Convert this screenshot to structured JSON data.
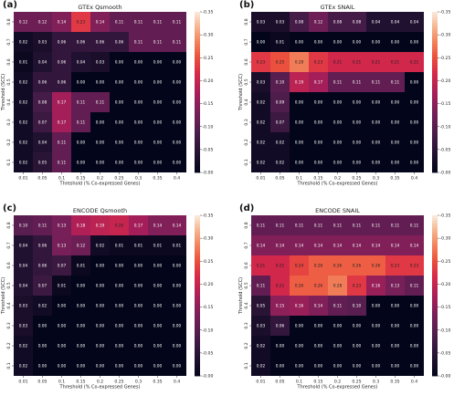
{
  "colorbar": {
    "min": 0,
    "max": 0.35,
    "ticks": [
      "0.00",
      "0.05",
      "0.10",
      "0.15",
      "0.20",
      "0.25",
      "0.30",
      "0.35"
    ]
  },
  "chart_data": [
    {
      "type": "heatmap",
      "panel": "(a)",
      "title": "GTEx Qsmooth",
      "xlabel": "Threshold (% Co-expressed Genes)",
      "ylabel": "Threshold (SCC)",
      "x_categories": [
        "0.01",
        "0.05",
        "0.1",
        "0.15",
        "0.2",
        "0.25",
        "0.3",
        "0.35",
        "0.4"
      ],
      "y_categories": [
        "0.8",
        "0.7",
        "0.6",
        "0.5",
        "0.4",
        "0.3",
        "0.2",
        "0.1"
      ],
      "values": [
        [
          0.12,
          0.12,
          0.14,
          0.23,
          0.14,
          0.11,
          0.11,
          0.11,
          0.11
        ],
        [
          0.02,
          0.03,
          0.06,
          0.06,
          0.06,
          0.06,
          0.11,
          0.11,
          0.11
        ],
        [
          0.01,
          0.04,
          0.06,
          0.04,
          0.03,
          0.0,
          0.0,
          0.0,
          0.0
        ],
        [
          0.02,
          0.06,
          0.06,
          0.0,
          0.0,
          0.0,
          0.0,
          0.0,
          0.0
        ],
        [
          0.02,
          0.08,
          0.17,
          0.11,
          0.11,
          0.0,
          0.0,
          0.0,
          0.0
        ],
        [
          0.02,
          0.07,
          0.17,
          0.11,
          0.0,
          0.0,
          0.0,
          0.0,
          0.0
        ],
        [
          0.02,
          0.04,
          0.11,
          0.0,
          0.0,
          0.0,
          0.0,
          0.0,
          0.0
        ],
        [
          0.02,
          0.05,
          0.11,
          0.0,
          0.0,
          0.0,
          0.0,
          0.0,
          0.0
        ]
      ]
    },
    {
      "type": "heatmap",
      "panel": "(b)",
      "title": "GTEx SNAIL",
      "xlabel": "Threshold (% Co-expressed Genes)",
      "ylabel": "Threshold (SCC)",
      "x_categories": [
        "0.01",
        "0.05",
        "0.1",
        "0.15",
        "0.2",
        "0.25",
        "0.3",
        "0.35",
        "0.4"
      ],
      "y_categories": [
        "0.8",
        "0.7",
        "0.6",
        "0.5",
        "0.4",
        "0.3",
        "0.2",
        "0.1"
      ],
      "values": [
        [
          0.03,
          0.03,
          0.08,
          0.12,
          0.08,
          0.08,
          0.04,
          0.04,
          0.04
        ],
        [
          0.0,
          0.01,
          0.0,
          0.0,
          0.0,
          0.0,
          0.0,
          0.0,
          0.0
        ],
        [
          0.23,
          0.25,
          0.28,
          0.23,
          0.21,
          0.21,
          0.21,
          0.21,
          0.21
        ],
        [
          0.03,
          0.1,
          0.19,
          0.17,
          0.11,
          0.11,
          0.11,
          0.11,
          0.0
        ],
        [
          0.02,
          0.09,
          0.0,
          0.0,
          0.0,
          0.0,
          0.0,
          0.0,
          0.0
        ],
        [
          0.02,
          0.07,
          0.0,
          0.0,
          0.0,
          0.0,
          0.0,
          0.0,
          0.0
        ],
        [
          0.02,
          0.02,
          0.0,
          0.0,
          0.0,
          0.0,
          0.0,
          0.0,
          0.0
        ],
        [
          0.02,
          0.02,
          0.0,
          0.0,
          0.0,
          0.0,
          0.0,
          0.0,
          0.0
        ]
      ]
    },
    {
      "type": "heatmap",
      "panel": "(c)",
      "title": "ENCODE Qsmooth",
      "xlabel": "Threshold (% Co-expressed Genes)",
      "ylabel": "Threshold (SCC)",
      "x_categories": [
        "0.01",
        "0.05",
        "0.1",
        "0.15",
        "0.2",
        "0.25",
        "0.3",
        "0.35",
        "0.4"
      ],
      "y_categories": [
        "0.8",
        "0.7",
        "0.6",
        "0.5",
        "0.4",
        "0.3",
        "0.2",
        "0.1"
      ],
      "values": [
        [
          0.1,
          0.11,
          0.13,
          0.18,
          0.19,
          0.2,
          0.17,
          0.14,
          0.14
        ],
        [
          0.04,
          0.06,
          0.13,
          0.12,
          0.02,
          0.01,
          0.01,
          0.01,
          0.01
        ],
        [
          0.04,
          0.06,
          0.07,
          0.01,
          0.0,
          0.0,
          0.0,
          0.0,
          0.0
        ],
        [
          0.04,
          0.07,
          0.01,
          0.0,
          0.0,
          0.0,
          0.0,
          0.0,
          0.0
        ],
        [
          0.03,
          0.02,
          0.0,
          0.0,
          0.0,
          0.0,
          0.0,
          0.0,
          0.0
        ],
        [
          0.03,
          0.0,
          0.0,
          0.0,
          0.0,
          0.0,
          0.0,
          0.0,
          0.0
        ],
        [
          0.02,
          0.0,
          0.0,
          0.0,
          0.0,
          0.0,
          0.0,
          0.0,
          0.0
        ],
        [
          0.02,
          0.0,
          0.0,
          0.0,
          0.0,
          0.0,
          0.0,
          0.0,
          0.0
        ]
      ]
    },
    {
      "type": "heatmap",
      "panel": "(d)",
      "title": "ENCODE SNAIL",
      "xlabel": "Threshold (% Co-expressed Genes)",
      "ylabel": "Threshold (SCC)",
      "x_categories": [
        "0.01",
        "0.05",
        "0.1",
        "0.15",
        "0.2",
        "0.25",
        "0.3",
        "0.35",
        "0.4"
      ],
      "y_categories": [
        "0.8",
        "0.7",
        "0.6",
        "0.5",
        "0.4",
        "0.3",
        "0.2",
        "0.1"
      ],
      "values": [
        [
          0.11,
          0.11,
          0.11,
          0.11,
          0.11,
          0.11,
          0.11,
          0.11,
          0.11
        ],
        [
          0.14,
          0.14,
          0.14,
          0.14,
          0.14,
          0.14,
          0.14,
          0.14,
          0.14
        ],
        [
          0.21,
          0.21,
          0.24,
          0.26,
          0.26,
          0.26,
          0.26,
          0.23,
          0.23
        ],
        [
          0.11,
          0.21,
          0.26,
          0.26,
          0.28,
          0.23,
          0.16,
          0.13,
          0.11
        ],
        [
          0.05,
          0.15,
          0.16,
          0.14,
          0.11,
          0.1,
          0.0,
          0.0,
          0.0
        ],
        [
          0.03,
          0.06,
          0.0,
          0.0,
          0.0,
          0.0,
          0.0,
          0.0,
          0.0
        ],
        [
          0.02,
          0.0,
          0.0,
          0.0,
          0.0,
          0.0,
          0.0,
          0.0,
          0.0
        ],
        [
          0.02,
          0.0,
          0.0,
          0.0,
          0.0,
          0.0,
          0.0,
          0.0,
          0.0
        ]
      ]
    }
  ]
}
